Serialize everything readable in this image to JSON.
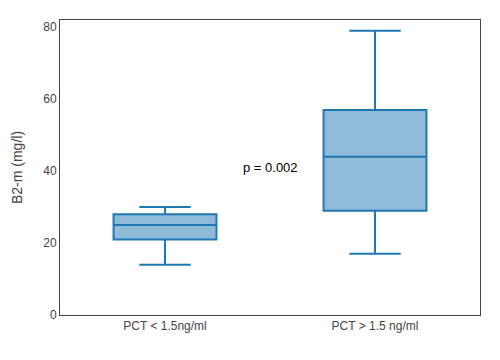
{
  "chart_data": {
    "type": "box",
    "categories": [
      "PCT < 1.5ng/ml",
      "PCT > 1.5 ng/ml"
    ],
    "boxes": [
      {
        "whisker_low": 14,
        "q1": 21,
        "median": 25,
        "q3": 28,
        "whisker_high": 30
      },
      {
        "whisker_low": 17,
        "q1": 29,
        "median": 44,
        "q3": 57,
        "whisker_high": 79
      }
    ],
    "ylabel": "B2-m (mg/l)",
    "annotation": "p = 0.002",
    "ylim": [
      0,
      82
    ],
    "yticks": [
      0,
      20,
      40,
      60,
      80
    ],
    "grid": false
  }
}
